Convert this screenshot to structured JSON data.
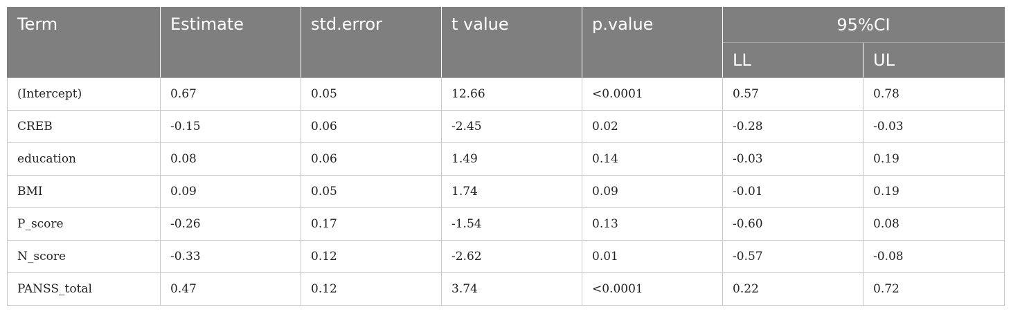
{
  "table": {
    "headers": [
      "Term",
      "Estimate",
      "std.error",
      "t value",
      "p.value"
    ],
    "ci_group": "95%CI",
    "ci_sub": [
      "LL",
      "UL"
    ],
    "rows": [
      [
        "(Intercept)",
        "0.67",
        "0.05",
        "12.66",
        "<0.0001",
        "0.57",
        "0.78"
      ],
      [
        "CREB",
        "-0.15",
        "0.06",
        "-2.45",
        "0.02",
        "-0.28",
        "-0.03"
      ],
      [
        "education",
        "0.08",
        "0.06",
        "1.49",
        "0.14",
        "-0.03",
        "0.19"
      ],
      [
        "BMI",
        "0.09",
        "0.05",
        "1.74",
        "0.09",
        "-0.01",
        "0.19"
      ],
      [
        "P_score",
        "-0.26",
        "0.17",
        "-1.54",
        "0.13",
        "-0.60",
        "0.08"
      ],
      [
        "N_score",
        "-0.33",
        "0.12",
        "-2.62",
        "0.01",
        "-0.57",
        "-0.08"
      ],
      [
        "PANSS_total",
        "0.47",
        "0.12",
        "3.74",
        "<0.0001",
        "0.22",
        "0.72"
      ]
    ]
  }
}
